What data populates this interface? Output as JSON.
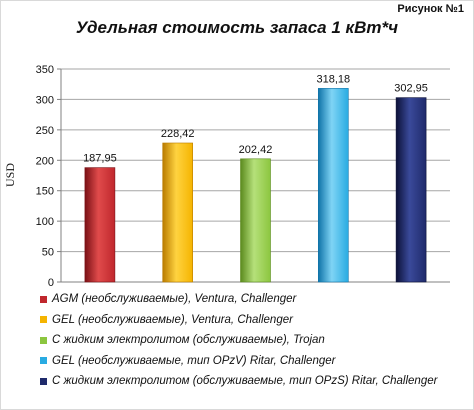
{
  "figure_label": "Рисунок №1",
  "chart_data": {
    "type": "bar",
    "title": "Удельная стоимость запаса 1 кВт*ч",
    "ylabel": "USD",
    "xlabel": "",
    "ylim": [
      0,
      350
    ],
    "yticks": [
      0,
      50,
      100,
      150,
      200,
      250,
      300,
      350
    ],
    "grid": true,
    "legend_position": "bottom",
    "series": [
      {
        "name": "AGM (необслуживаемые), Ventura, Challenger",
        "value": 187.95,
        "label": "187,95",
        "color": "#c0272d",
        "dark": "#7a1015",
        "light": "#e04b4b"
      },
      {
        "name": "GEL (необслуживаемые), Ventura, Challenger",
        "value": 228.42,
        "label": "228,42",
        "color": "#f5b400",
        "dark": "#b97b00",
        "light": "#ffd340"
      },
      {
        "name": "С жидким электролитом (обслуживаемые), Trojan",
        "value": 202.42,
        "label": "202,42",
        "color": "#8cc63f",
        "dark": "#5b8a1e",
        "light": "#b5e07a"
      },
      {
        "name": "GEL (необслуживаемые, тип OPzV) Ritar, Challenger",
        "value": 318.18,
        "label": "318,18",
        "color": "#29abe2",
        "dark": "#0f73a8",
        "light": "#7fd4f5"
      },
      {
        "name": "С жидким электролитом (обслуживаемые, тип OPzS) Ritar, Challenger",
        "value": 302.95,
        "label": "302,95",
        "color": "#1f2a6b",
        "dark": "#0c1138",
        "light": "#3a4a9a"
      }
    ]
  }
}
